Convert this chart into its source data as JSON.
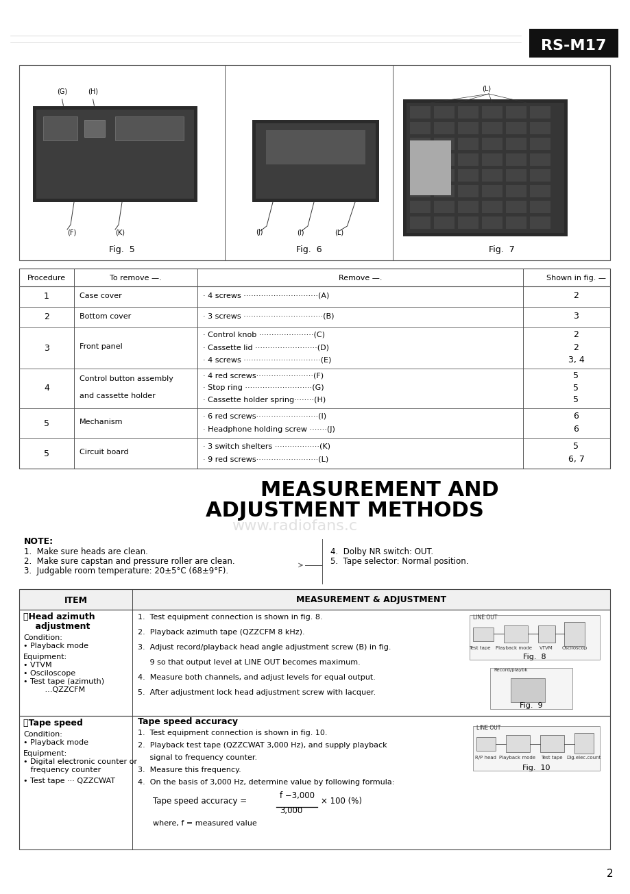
{
  "title_line1": "MEASUREMENT AND",
  "title_line2": "ADJUSTMENT METHODS",
  "watermark": "www.radiofans.c",
  "model": "RS-M17",
  "page_number": "2",
  "bg_color": "#ffffff",
  "table1_header": [
    "Procedure",
    "To remove —.",
    "Remove —.",
    "Shown in fig. —"
  ],
  "table1_rows": [
    [
      "1",
      "Case cover",
      "· 4 screws ······························(A)",
      "2"
    ],
    [
      "2",
      "Bottom cover",
      "· 3 screws ································(B)",
      "3"
    ],
    [
      "3",
      "Front panel",
      "· Control knob ······················(C)\n· Cassette lid ·························(D)\n· 4 screws ·······························(E)",
      "2\n2\n3, 4"
    ],
    [
      "4",
      "Control button assembly\nand cassette holder",
      "· 4 red screws·······················(F)\n· Stop ring ···························(G)\n· Cassette holder spring········(H)",
      "5\n5\n5"
    ],
    [
      "5",
      "Mechanism",
      "· 6 red screws·························(I)\n· Headphone holding screw ·······(J)",
      "6\n6"
    ],
    [
      "5",
      "Circuit board",
      "· 3 switch shelters ··················(K)\n· 9 red screws·························(L)",
      "5\n6, 7"
    ]
  ],
  "note_title": "NOTE:",
  "note_items_left": [
    "1.  Make sure heads are clean.",
    "2.  Make sure capstan and pressure roller are clean.",
    "3.  Judgable room temperature: 20±5°C (68±9°F)."
  ],
  "note_items_right": [
    "4.  Dolby NR switch: OUT.",
    "5.  Tape selector: Normal position."
  ],
  "table2_col1_header": "ITEM",
  "table2_col2_header": "MEASUREMENT & ADJUSTMENT",
  "fig5_label": "Fig.  5",
  "fig6_label": "Fig.  6",
  "fig7_label": "Fig.  7"
}
